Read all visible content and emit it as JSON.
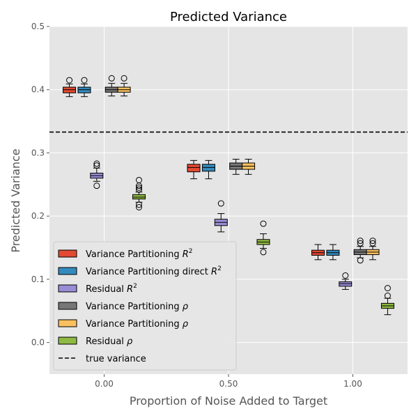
{
  "chart_data": {
    "type": "box",
    "title": "Predicted Variance",
    "xlabel": "Proportion of Noise Added to Target",
    "ylabel": "Predicted Variance",
    "xlim": [
      -0.22,
      1.22
    ],
    "ylim": [
      -0.05,
      0.5
    ],
    "x_ticks": [
      0.0,
      0.5,
      1.0
    ],
    "x_tick_labels": [
      "0.00",
      "0.50",
      "1.00"
    ],
    "y_ticks": [
      0.0,
      0.1,
      0.2,
      0.3,
      0.4,
      0.5
    ],
    "y_tick_labels": [
      "0.0",
      "0.1",
      "0.2",
      "0.3",
      "0.4",
      "0.5"
    ],
    "grid": true,
    "legend_position": "lower-left",
    "reference_line": {
      "label": "true variance",
      "y": 0.333,
      "style": "dashed",
      "color": "#000000"
    },
    "series": [
      {
        "name": "Variance Partitioning $R^2$",
        "legend_label": "Variance Partitioning ",
        "legend_math": "R",
        "legend_sup": "2",
        "color": "#E24A33",
        "boxes": [
          {
            "x": -0.14,
            "whislo": 0.389,
            "q1": 0.395,
            "med": 0.4,
            "q3": 0.404,
            "whishi": 0.409,
            "fliers": [
              0.415
            ]
          },
          {
            "x": 0.36,
            "whislo": 0.259,
            "q1": 0.27,
            "med": 0.277,
            "q3": 0.282,
            "whishi": 0.288,
            "fliers": []
          },
          {
            "x": 0.86,
            "whislo": 0.131,
            "q1": 0.138,
            "med": 0.142,
            "q3": 0.146,
            "whishi": 0.155,
            "fliers": []
          }
        ]
      },
      {
        "name": "Variance Partitioning direct $R^2$",
        "legend_label": "Variance Partitioning direct ",
        "legend_math": "R",
        "legend_sup": "2",
        "color": "#348ABD",
        "boxes": [
          {
            "x": -0.08,
            "whislo": 0.389,
            "q1": 0.395,
            "med": 0.4,
            "q3": 0.404,
            "whishi": 0.409,
            "fliers": [
              0.415
            ]
          },
          {
            "x": 0.42,
            "whislo": 0.259,
            "q1": 0.271,
            "med": 0.277,
            "q3": 0.282,
            "whishi": 0.288,
            "fliers": []
          },
          {
            "x": 0.92,
            "whislo": 0.131,
            "q1": 0.138,
            "med": 0.142,
            "q3": 0.146,
            "whishi": 0.155,
            "fliers": []
          }
        ]
      },
      {
        "name": "Residual $R^2$",
        "legend_label": "Residual ",
        "legend_math": "R",
        "legend_sup": "2",
        "color": "#988ED5",
        "boxes": [
          {
            "x": -0.03,
            "whislo": 0.255,
            "q1": 0.26,
            "med": 0.264,
            "q3": 0.268,
            "whishi": 0.276,
            "fliers": [
              0.248,
              0.28,
              0.283
            ]
          },
          {
            "x": 0.47,
            "whislo": 0.175,
            "q1": 0.185,
            "med": 0.19,
            "q3": 0.195,
            "whishi": 0.204,
            "fliers": [
              0.22
            ]
          },
          {
            "x": 0.97,
            "whislo": 0.084,
            "q1": 0.089,
            "med": 0.093,
            "q3": 0.096,
            "whishi": 0.1,
            "fliers": [
              0.106
            ]
          }
        ]
      },
      {
        "name": "Variance Partitioning $\\rho$",
        "legend_label": "Variance Partitioning ",
        "legend_math": "ρ",
        "legend_sup": "",
        "color": "#777777",
        "boxes": [
          {
            "x": 0.03,
            "whislo": 0.39,
            "q1": 0.396,
            "med": 0.4,
            "q3": 0.404,
            "whishi": 0.41,
            "fliers": [
              0.418
            ]
          },
          {
            "x": 0.53,
            "whislo": 0.266,
            "q1": 0.274,
            "med": 0.279,
            "q3": 0.284,
            "whishi": 0.29,
            "fliers": []
          },
          {
            "x": 1.03,
            "whislo": 0.134,
            "q1": 0.139,
            "med": 0.143,
            "q3": 0.147,
            "whishi": 0.152,
            "fliers": [
              0.13,
              0.157,
              0.161
            ]
          }
        ]
      },
      {
        "name": "Variance Partitioning $\\rho$",
        "legend_label": "Variance Partitioning ",
        "legend_math": "ρ",
        "legend_sup": "",
        "color": "#FBC15E",
        "boxes": [
          {
            "x": 0.08,
            "whislo": 0.39,
            "q1": 0.396,
            "med": 0.4,
            "q3": 0.404,
            "whishi": 0.41,
            "fliers": [
              0.418
            ]
          },
          {
            "x": 0.58,
            "whislo": 0.266,
            "q1": 0.274,
            "med": 0.279,
            "q3": 0.284,
            "whishi": 0.29,
            "fliers": []
          },
          {
            "x": 1.08,
            "whislo": 0.131,
            "q1": 0.139,
            "med": 0.143,
            "q3": 0.147,
            "whishi": 0.152,
            "fliers": [
              0.157,
              0.161
            ]
          }
        ]
      },
      {
        "name": "Residual $\\rho$",
        "legend_label": "Residual ",
        "legend_math": "ρ",
        "legend_sup": "",
        "color": "#8EBA42",
        "boxes": [
          {
            "x": 0.14,
            "whislo": 0.222,
            "q1": 0.227,
            "med": 0.23,
            "q3": 0.234,
            "whishi": 0.238,
            "fliers": [
              0.214,
              0.218,
              0.242,
              0.245,
              0.248,
              0.257
            ]
          },
          {
            "x": 0.64,
            "whislo": 0.149,
            "q1": 0.155,
            "med": 0.159,
            "q3": 0.163,
            "whishi": 0.172,
            "fliers": [
              0.143,
              0.188
            ]
          },
          {
            "x": 1.14,
            "whislo": 0.044,
            "q1": 0.054,
            "med": 0.058,
            "q3": 0.062,
            "whishi": 0.07,
            "fliers": [
              0.074,
              0.086
            ]
          }
        ]
      }
    ]
  }
}
